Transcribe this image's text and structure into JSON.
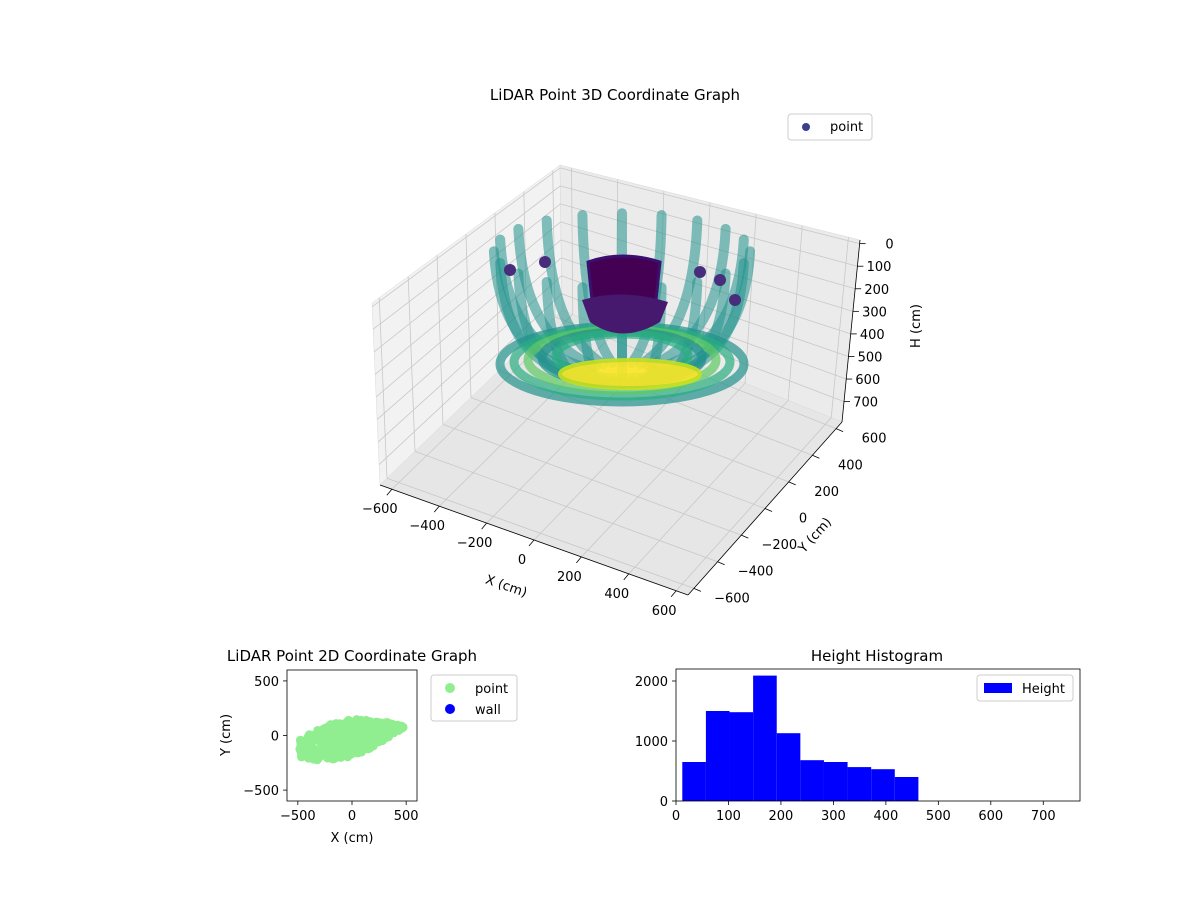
{
  "chart_data": [
    {
      "type": "scatter",
      "title": "LiDAR Point 3D Coordinate Graph",
      "xlabel": "X (cm)",
      "ylabel": "Y (cm)",
      "zlabel": "H (cm)",
      "xlim": [
        -650,
        650
      ],
      "ylim": [
        -650,
        650
      ],
      "zlim": [
        0,
        750
      ],
      "z_inverted": true,
      "x_ticks": [
        -600,
        -400,
        -200,
        0,
        200,
        400,
        600
      ],
      "y_ticks": [
        -600,
        -400,
        -200,
        0,
        200,
        400,
        600
      ],
      "z_ticks": [
        0,
        100,
        200,
        300,
        400,
        500,
        600,
        700
      ],
      "colormap": "viridis",
      "grid": true,
      "legend": {
        "placement": "upper-right",
        "entries": [
          {
            "label": "point",
            "color": "#3b3f8c"
          }
        ]
      },
      "series": [
        {
          "name": "point",
          "shape": "nested bowl-shaped rings, deepest point near H=700 at center"
        }
      ]
    },
    {
      "type": "scatter",
      "title": "LiDAR Point 2D Coordinate Graph",
      "xlabel": "X (cm)",
      "ylabel": "Y (cm)",
      "xlim": [
        -600,
        600
      ],
      "ylim": [
        -600,
        600
      ],
      "x_ticks": [
        -500,
        0,
        500
      ],
      "y_ticks": [
        -500,
        0,
        500
      ],
      "legend": {
        "placement": "outside-right",
        "entries": [
          {
            "label": "point",
            "color": "#90ee90"
          },
          {
            "label": "wall",
            "color": "#0000ff"
          }
        ]
      },
      "series": [
        {
          "name": "point",
          "color": "#90ee90",
          "extent_x": [
            -480,
            480
          ],
          "extent_y": [
            -300,
            280
          ]
        },
        {
          "name": "wall",
          "color": "#0000ff",
          "count": 0
        }
      ]
    },
    {
      "type": "bar",
      "title": "Height Histogram",
      "xlim": [
        0,
        770
      ],
      "ylim": [
        0,
        2200
      ],
      "x_ticks": [
        0,
        100,
        200,
        300,
        400,
        500,
        600,
        700
      ],
      "y_ticks": [
        0,
        1000,
        2000
      ],
      "color": "#0000ff",
      "legend": {
        "placement": "upper-right",
        "entries": [
          {
            "label": "Height",
            "color": "#0000ff"
          }
        ]
      },
      "bins": [
        {
          "x0": 12,
          "x1": 57,
          "value": 650
        },
        {
          "x0": 57,
          "x1": 102,
          "value": 1500
        },
        {
          "x0": 102,
          "x1": 147,
          "value": 1480
        },
        {
          "x0": 147,
          "x1": 192,
          "value": 2090
        },
        {
          "x0": 192,
          "x1": 237,
          "value": 1130
        },
        {
          "x0": 237,
          "x1": 282,
          "value": 680
        },
        {
          "x0": 282,
          "x1": 327,
          "value": 650
        },
        {
          "x0": 327,
          "x1": 372,
          "value": 565
        },
        {
          "x0": 372,
          "x1": 417,
          "value": 530
        },
        {
          "x0": 417,
          "x1": 462,
          "value": 400
        }
      ]
    }
  ]
}
